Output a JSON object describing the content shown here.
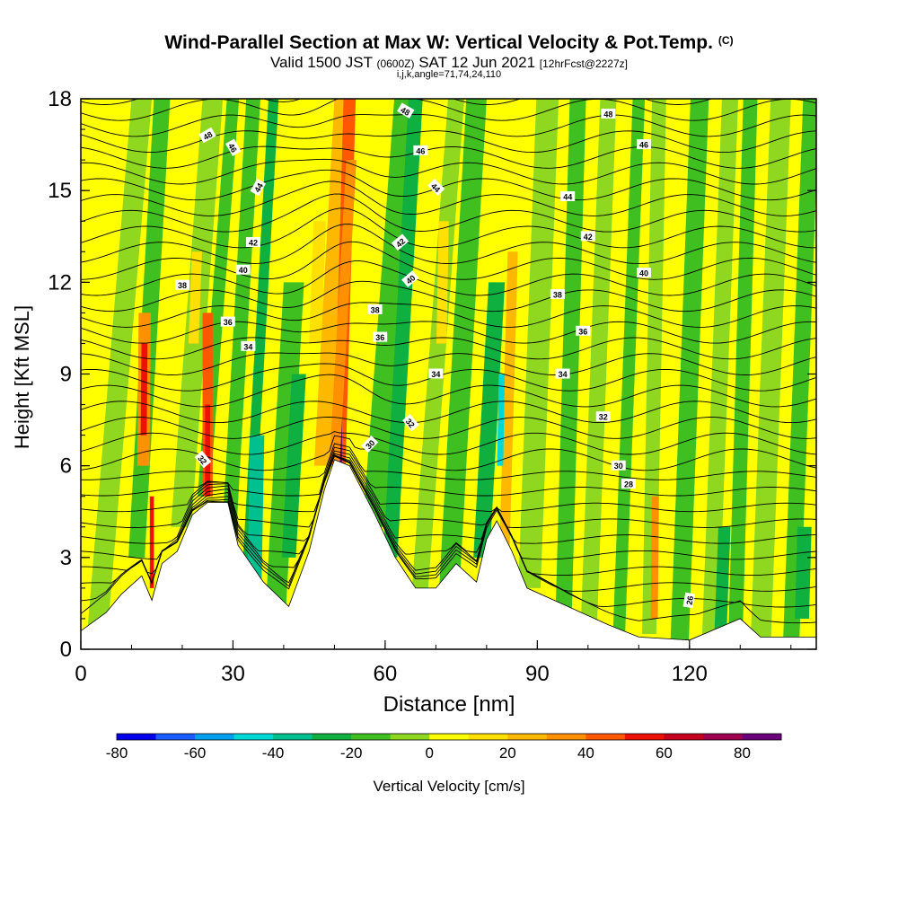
{
  "header": {
    "title": "Wind-Parallel Section at Max W: Vertical Velocity & Pot.Temp.",
    "copyright_mark": "(C)",
    "valid_prefix": "Valid 1500 JST",
    "valid_utc": "(0600Z)",
    "valid_date": "SAT 12 Jun 2021",
    "forecast_info": "[12hrFcst@2227z]",
    "indices": "i,j,k,angle=71,74,24,110"
  },
  "colors": {
    "terrain": "#ffffff",
    "contour_line": "#000000",
    "scale": [
      "#0000ee",
      "#1a5cff",
      "#00a0ee",
      "#00d8d8",
      "#00c090",
      "#10b040",
      "#40c020",
      "#90d820",
      "#ffff00",
      "#ffe000",
      "#ffb800",
      "#ff9000",
      "#ff5800",
      "#ee1000",
      "#c80020",
      "#a00050",
      "#6c007c"
    ]
  },
  "chart_data": {
    "type": "heatmap",
    "title": "Wind-Parallel Section at Max W: Vertical Velocity & Pot.Temp.",
    "xlabel": "Distance [nm]",
    "ylabel": "Height [Kft MSL]",
    "xlim": [
      0,
      145
    ],
    "ylim": [
      0,
      18
    ],
    "x_ticks": [
      "0",
      "30",
      "60",
      "90",
      "120"
    ],
    "y_ticks": [
      "0",
      "3",
      "6",
      "9",
      "12",
      "15",
      "18"
    ],
    "colorbar": {
      "label": "Vertical Velocity [cm/s]",
      "range": [
        -80,
        90
      ],
      "tick_labels": [
        "-80",
        "-60",
        "-40",
        "-20",
        "0",
        "20",
        "40",
        "60",
        "80"
      ]
    },
    "fields": [
      "Vertical Velocity (shaded)",
      "Potential Temperature (contours)"
    ],
    "terrain_profile": [
      [
        0,
        0.6
      ],
      [
        5,
        1.2
      ],
      [
        8,
        1.8
      ],
      [
        12,
        2.4
      ],
      [
        14,
        1.6
      ],
      [
        16,
        2.8
      ],
      [
        19,
        3.2
      ],
      [
        22,
        4.4
      ],
      [
        25,
        4.8
      ],
      [
        29,
        4.8
      ],
      [
        31,
        3.4
      ],
      [
        36,
        2.2
      ],
      [
        41,
        1.4
      ],
      [
        45,
        3.2
      ],
      [
        48,
        5.2
      ],
      [
        50,
        6.2
      ],
      [
        53,
        6.0
      ],
      [
        58,
        4.4
      ],
      [
        62,
        3.0
      ],
      [
        66,
        2.0
      ],
      [
        70,
        2.0
      ],
      [
        74,
        2.8
      ],
      [
        78,
        2.2
      ],
      [
        80,
        3.6
      ],
      [
        82,
        4.2
      ],
      [
        85,
        3.2
      ],
      [
        88,
        2.0
      ],
      [
        96,
        1.4
      ],
      [
        104,
        0.8
      ],
      [
        110,
        0.4
      ],
      [
        120,
        0.3
      ],
      [
        130,
        1.0
      ],
      [
        134,
        0.4
      ],
      [
        145,
        0.4
      ]
    ],
    "theta_contours": [
      {
        "label": "26",
        "x": 120,
        "y": 1.6,
        "angle": -80
      },
      {
        "label": "28",
        "x": 108,
        "y": 5.4,
        "angle": 0
      },
      {
        "label": "30",
        "x": 106,
        "y": 6.0,
        "angle": 0
      },
      {
        "label": "30",
        "x": 57,
        "y": 6.7,
        "angle": -45
      },
      {
        "label": "32",
        "x": 24,
        "y": 6.2,
        "angle": 50
      },
      {
        "label": "32",
        "x": 65,
        "y": 7.4,
        "angle": 50
      },
      {
        "label": "32",
        "x": 103,
        "y": 7.6,
        "angle": 0
      },
      {
        "label": "34",
        "x": 33,
        "y": 9.9,
        "angle": 0
      },
      {
        "label": "34",
        "x": 70,
        "y": 9.0,
        "angle": 0
      },
      {
        "label": "34",
        "x": 95,
        "y": 9.0,
        "angle": 0
      },
      {
        "label": "36",
        "x": 29,
        "y": 10.7,
        "angle": 0
      },
      {
        "label": "36",
        "x": 59,
        "y": 10.2,
        "angle": 0
      },
      {
        "label": "36",
        "x": 99,
        "y": 10.4,
        "angle": 0
      },
      {
        "label": "38",
        "x": 20,
        "y": 11.9,
        "angle": 0
      },
      {
        "label": "38",
        "x": 58,
        "y": 11.1,
        "angle": 0
      },
      {
        "label": "38",
        "x": 94,
        "y": 11.6,
        "angle": 0
      },
      {
        "label": "40",
        "x": 32,
        "y": 12.4,
        "angle": 0
      },
      {
        "label": "40",
        "x": 65,
        "y": 12.1,
        "angle": -40
      },
      {
        "label": "40",
        "x": 111,
        "y": 12.3,
        "angle": 0
      },
      {
        "label": "42",
        "x": 34,
        "y": 13.3,
        "angle": 0
      },
      {
        "label": "42",
        "x": 63,
        "y": 13.3,
        "angle": -40
      },
      {
        "label": "42",
        "x": 100,
        "y": 13.5,
        "angle": 0
      },
      {
        "label": "44",
        "x": 35,
        "y": 15.1,
        "angle": -60
      },
      {
        "label": "44",
        "x": 70,
        "y": 15.1,
        "angle": 45
      },
      {
        "label": "44",
        "x": 96,
        "y": 14.8,
        "angle": 0
      },
      {
        "label": "46",
        "x": 30,
        "y": 16.4,
        "angle": 60
      },
      {
        "label": "46",
        "x": 67,
        "y": 16.3,
        "angle": 0
      },
      {
        "label": "46",
        "x": 111,
        "y": 16.5,
        "angle": 0
      },
      {
        "label": "48",
        "x": 25,
        "y": 16.8,
        "angle": -30
      },
      {
        "label": "48",
        "x": 64,
        "y": 17.6,
        "angle": 30
      },
      {
        "label": "48",
        "x": 104,
        "y": 17.5,
        "angle": 0
      }
    ]
  }
}
